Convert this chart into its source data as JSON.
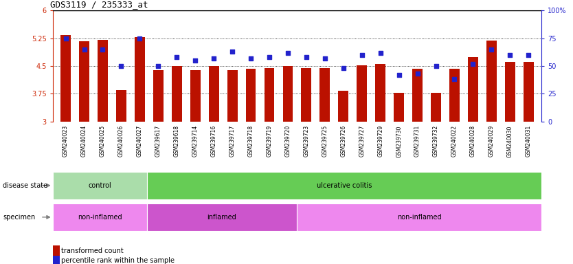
{
  "title": "GDS3119 / 235333_at",
  "samples": [
    "GSM240023",
    "GSM240024",
    "GSM240025",
    "GSM240026",
    "GSM240027",
    "GSM239617",
    "GSM239618",
    "GSM239714",
    "GSM239716",
    "GSM239717",
    "GSM239718",
    "GSM239719",
    "GSM239720",
    "GSM239723",
    "GSM239725",
    "GSM239726",
    "GSM239727",
    "GSM239729",
    "GSM239730",
    "GSM239731",
    "GSM239732",
    "GSM240022",
    "GSM240028",
    "GSM240029",
    "GSM240030",
    "GSM240031"
  ],
  "red_values": [
    5.33,
    5.17,
    5.2,
    3.85,
    5.28,
    4.38,
    4.5,
    4.38,
    4.5,
    4.38,
    4.42,
    4.45,
    4.5,
    4.45,
    4.44,
    3.83,
    4.52,
    4.55,
    3.78,
    4.42,
    3.78,
    4.42,
    4.75,
    5.18,
    4.62,
    4.62
  ],
  "blue_values": [
    75,
    65,
    65,
    50,
    75,
    50,
    58,
    55,
    57,
    63,
    57,
    58,
    62,
    58,
    57,
    48,
    60,
    62,
    42,
    43,
    50,
    38,
    52,
    65,
    60,
    60
  ],
  "ylim_left": [
    3.0,
    6.0
  ],
  "ylim_right": [
    0,
    100
  ],
  "yticks_left": [
    3.0,
    3.75,
    4.5,
    5.25,
    6.0
  ],
  "ytick_labels_left": [
    "3",
    "3.75",
    "4.5",
    "5.25",
    "6"
  ],
  "yticks_right": [
    0,
    25,
    50,
    75,
    100
  ],
  "ytick_labels_right": [
    "0",
    "25",
    "50",
    "75",
    "100%"
  ],
  "bar_color": "#bb1100",
  "dot_color": "#2222cc",
  "disease_groups": [
    {
      "label": "control",
      "start": 0,
      "end": 5,
      "color": "#aaddaa"
    },
    {
      "label": "ulcerative colitis",
      "start": 5,
      "end": 26,
      "color": "#66cc55"
    }
  ],
  "specimen_groups": [
    {
      "label": "non-inflamed",
      "start": 0,
      "end": 5,
      "color": "#ee88ee"
    },
    {
      "label": "inflamed",
      "start": 5,
      "end": 13,
      "color": "#cc55cc"
    },
    {
      "label": "non-inflamed",
      "start": 13,
      "end": 26,
      "color": "#ee88ee"
    }
  ],
  "legend_items": [
    {
      "label": "transformed count",
      "color": "#bb1100"
    },
    {
      "label": "percentile rank within the sample",
      "color": "#2222cc"
    }
  ],
  "plot_bg": "#ffffff",
  "xticklabel_bg": "#cccccc"
}
